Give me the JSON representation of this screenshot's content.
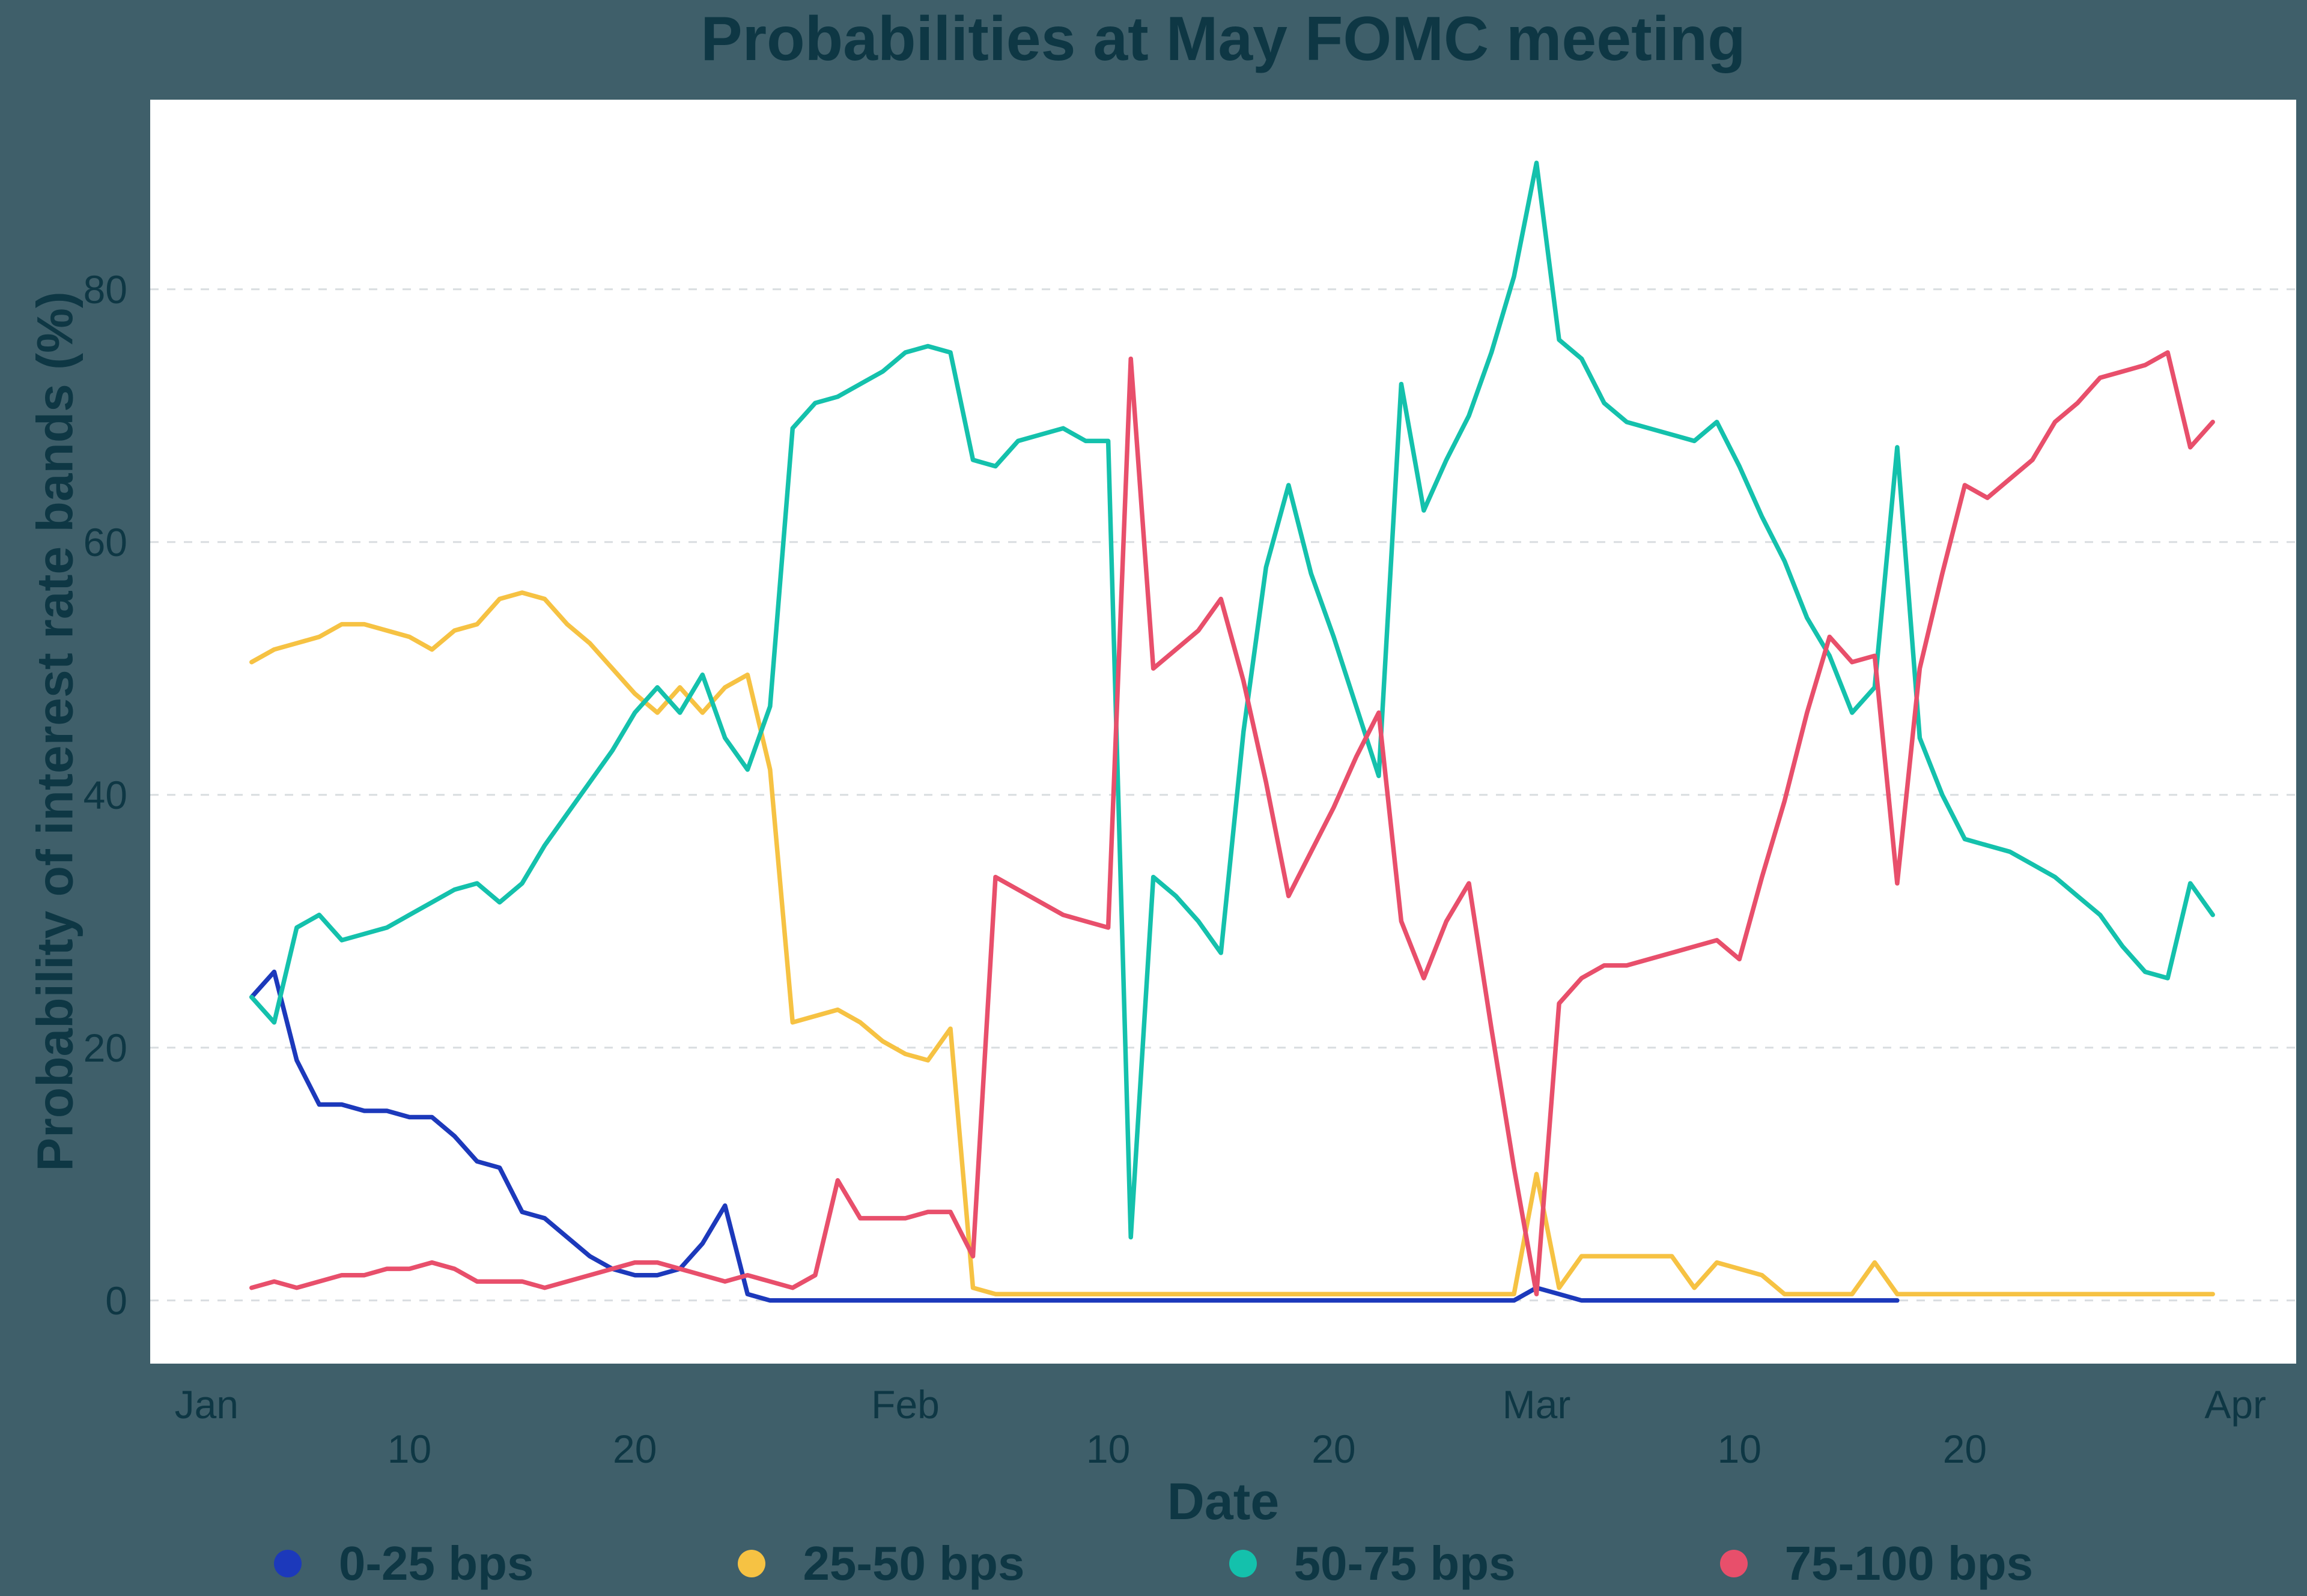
{
  "colors": {
    "background": "#3f5f6a",
    "plot_background": "#ffffff",
    "text": "#0e3744",
    "gridline": "#d9dde0"
  },
  "chart_data": {
    "type": "line",
    "title": "Probabilities at May FOMC meeting",
    "xlabel": "Date",
    "ylabel": "Probability of interest rate bands (%)",
    "legend_position": "bottom",
    "grid": "horizontal-dashed",
    "y_ticks": [
      0,
      20,
      40,
      60,
      80
    ],
    "ylim": [
      -5,
      95
    ],
    "xlim_days": [
      -4.5,
      90.7
    ],
    "x_ticks": {
      "months": [
        {
          "label": "Jan",
          "day": -2
        },
        {
          "label": "Feb",
          "day": 29
        },
        {
          "label": "Mar",
          "day": 57
        },
        {
          "label": "Apr",
          "day": 88
        }
      ],
      "days": [
        {
          "label": "10",
          "day": 7
        },
        {
          "label": "20",
          "day": 17
        },
        {
          "label": "10",
          "day": 38
        },
        {
          "label": "20",
          "day": 48
        },
        {
          "label": "10",
          "day": 66
        },
        {
          "label": "20",
          "day": 76
        }
      ]
    },
    "x_dates": [
      "Jan 3",
      "Jan 4",
      "Jan 5",
      "Jan 6",
      "Jan 7",
      "Jan 8",
      "Jan 9",
      "Jan 10",
      "Jan 11",
      "Jan 12",
      "Jan 13",
      "Jan 14",
      "Jan 15",
      "Jan 16",
      "Jan 17",
      "Jan 18",
      "Jan 19",
      "Jan 20",
      "Jan 21",
      "Jan 22",
      "Jan 23",
      "Jan 24",
      "Jan 25",
      "Jan 26",
      "Jan 27",
      "Jan 28",
      "Jan 29",
      "Jan 30",
      "Jan 31",
      "Feb 1",
      "Feb 2",
      "Feb 3",
      "Feb 4",
      "Feb 5",
      "Feb 6",
      "Feb 7",
      "Feb 8",
      "Feb 9",
      "Feb 10",
      "Feb 11",
      "Feb 12",
      "Feb 13",
      "Feb 14",
      "Feb 15",
      "Feb 16",
      "Feb 17",
      "Feb 18",
      "Feb 19",
      "Feb 20",
      "Feb 21",
      "Feb 22",
      "Feb 23",
      "Feb 24",
      "Feb 25",
      "Feb 26",
      "Feb 27",
      "Feb 28",
      "Mar 1",
      "Mar 2",
      "Mar 3",
      "Mar 4",
      "Mar 5",
      "Mar 6",
      "Mar 7",
      "Mar 8",
      "Mar 9",
      "Mar 10",
      "Mar 11",
      "Mar 12",
      "Mar 13",
      "Mar 14",
      "Mar 15",
      "Mar 16",
      "Mar 17",
      "Mar 18",
      "Mar 19",
      "Mar 20",
      "Mar 21",
      "Mar 22",
      "Mar 23",
      "Mar 24",
      "Mar 25",
      "Mar 26",
      "Mar 27",
      "Mar 28",
      "Mar 29",
      "Mar 30",
      "Mar 31"
    ],
    "series": [
      {
        "name": "0-25 bps",
        "color": "#1c39bb",
        "values": [
          24,
          26,
          19,
          15.5,
          15.5,
          15,
          15,
          14.5,
          14.5,
          13,
          11,
          10.5,
          7,
          6.5,
          5,
          3.5,
          2.5,
          2,
          2,
          2.5,
          4.5,
          7.5,
          0.5,
          0,
          0,
          0,
          0,
          0,
          0,
          0,
          0,
          0,
          0,
          0,
          0,
          0,
          0,
          0,
          0,
          0,
          0,
          0,
          0,
          0,
          0,
          0,
          0,
          0,
          0,
          0,
          0,
          0,
          0,
          0,
          0,
          0,
          0,
          1,
          0.5,
          0,
          0,
          0,
          0,
          0,
          0,
          0,
          0,
          0,
          0,
          0,
          0,
          0,
          0,
          0,
          null,
          null,
          null,
          null,
          null,
          null,
          null,
          null,
          null,
          null,
          null,
          null,
          null,
          null
        ]
      },
      {
        "name": "25-50 bps",
        "color": "#f6c243",
        "values": [
          50.5,
          51.5,
          52,
          52.5,
          53.5,
          53.5,
          53,
          52.5,
          51.5,
          53,
          53.5,
          55.5,
          56,
          55.5,
          53.5,
          52,
          50,
          48,
          46.5,
          48.5,
          46.5,
          48.5,
          49.5,
          42,
          22,
          22.5,
          23,
          22,
          20.5,
          19.5,
          19,
          21.5,
          1,
          0.5,
          0.5,
          0.5,
          0.5,
          0.5,
          0.5,
          0.5,
          0.5,
          0.5,
          0.5,
          0.5,
          0.5,
          0.5,
          0.5,
          0.5,
          0.5,
          0.5,
          0.5,
          0.5,
          0.5,
          0.5,
          0.5,
          0.5,
          0.5,
          10,
          1,
          3.5,
          3.5,
          3.5,
          3.5,
          3.5,
          1,
          3,
          2.5,
          2,
          0.5,
          0.5,
          0.5,
          0.5,
          3,
          0.5,
          0.5,
          0.5,
          0.5,
          0.5,
          0.5,
          0.5,
          0.5,
          0.5,
          0.5,
          0.5,
          0.5,
          0.5,
          0.5,
          0.5
        ]
      },
      {
        "name": "50-75 bps",
        "color": "#14c1ac",
        "values": [
          24,
          22,
          29.5,
          30.5,
          28.5,
          29,
          29.5,
          30.5,
          31.5,
          32.5,
          33,
          31.5,
          33,
          36,
          38.5,
          41,
          43.5,
          46.5,
          48.5,
          46.5,
          49.5,
          44.5,
          42,
          47,
          69,
          71,
          71.5,
          72.5,
          73.5,
          75,
          75.5,
          75,
          66.5,
          66,
          68,
          68.5,
          69,
          68,
          68,
          5,
          33.5,
          32,
          30,
          27.5,
          45,
          58,
          64.5,
          57.5,
          52.5,
          47,
          41.5,
          72.5,
          62.5,
          66.5,
          70,
          75,
          81,
          90,
          76,
          74.5,
          71,
          69.5,
          69,
          68.5,
          68,
          69.5,
          66,
          62,
          58.5,
          54,
          51,
          46.5,
          48.5,
          67.5,
          44.5,
          40,
          36.5,
          36,
          35.5,
          34.5,
          33.5,
          32,
          30.5,
          28,
          26,
          25.5,
          33,
          30.5
        ]
      },
      {
        "name": "75-100 bps",
        "color": "#e84f6b",
        "values": [
          1,
          1.5,
          1,
          1.5,
          2,
          2,
          2.5,
          2.5,
          3,
          2.5,
          1.5,
          1.5,
          1.5,
          1,
          1.5,
          2,
          2.5,
          3,
          3,
          2.5,
          2,
          1.5,
          2,
          1.5,
          1,
          2,
          9.5,
          6.5,
          6.5,
          6.5,
          7,
          7,
          3.5,
          33.5,
          32.5,
          31.5,
          30.5,
          30,
          29.5,
          74.5,
          50,
          51.5,
          53,
          55.5,
          49,
          41,
          32,
          35.5,
          39,
          43,
          46.5,
          30,
          25.5,
          30,
          33,
          21.5,
          10.5,
          0.5,
          23.5,
          25.5,
          26.5,
          26.5,
          27,
          27.5,
          28,
          28.5,
          27,
          33.5,
          39.5,
          46.5,
          52.5,
          50.5,
          51,
          33,
          50,
          57.5,
          64.5,
          63.5,
          65,
          66.5,
          69.5,
          71,
          73,
          73.5,
          74,
          75,
          67.5,
          69.5
        ]
      }
    ]
  }
}
